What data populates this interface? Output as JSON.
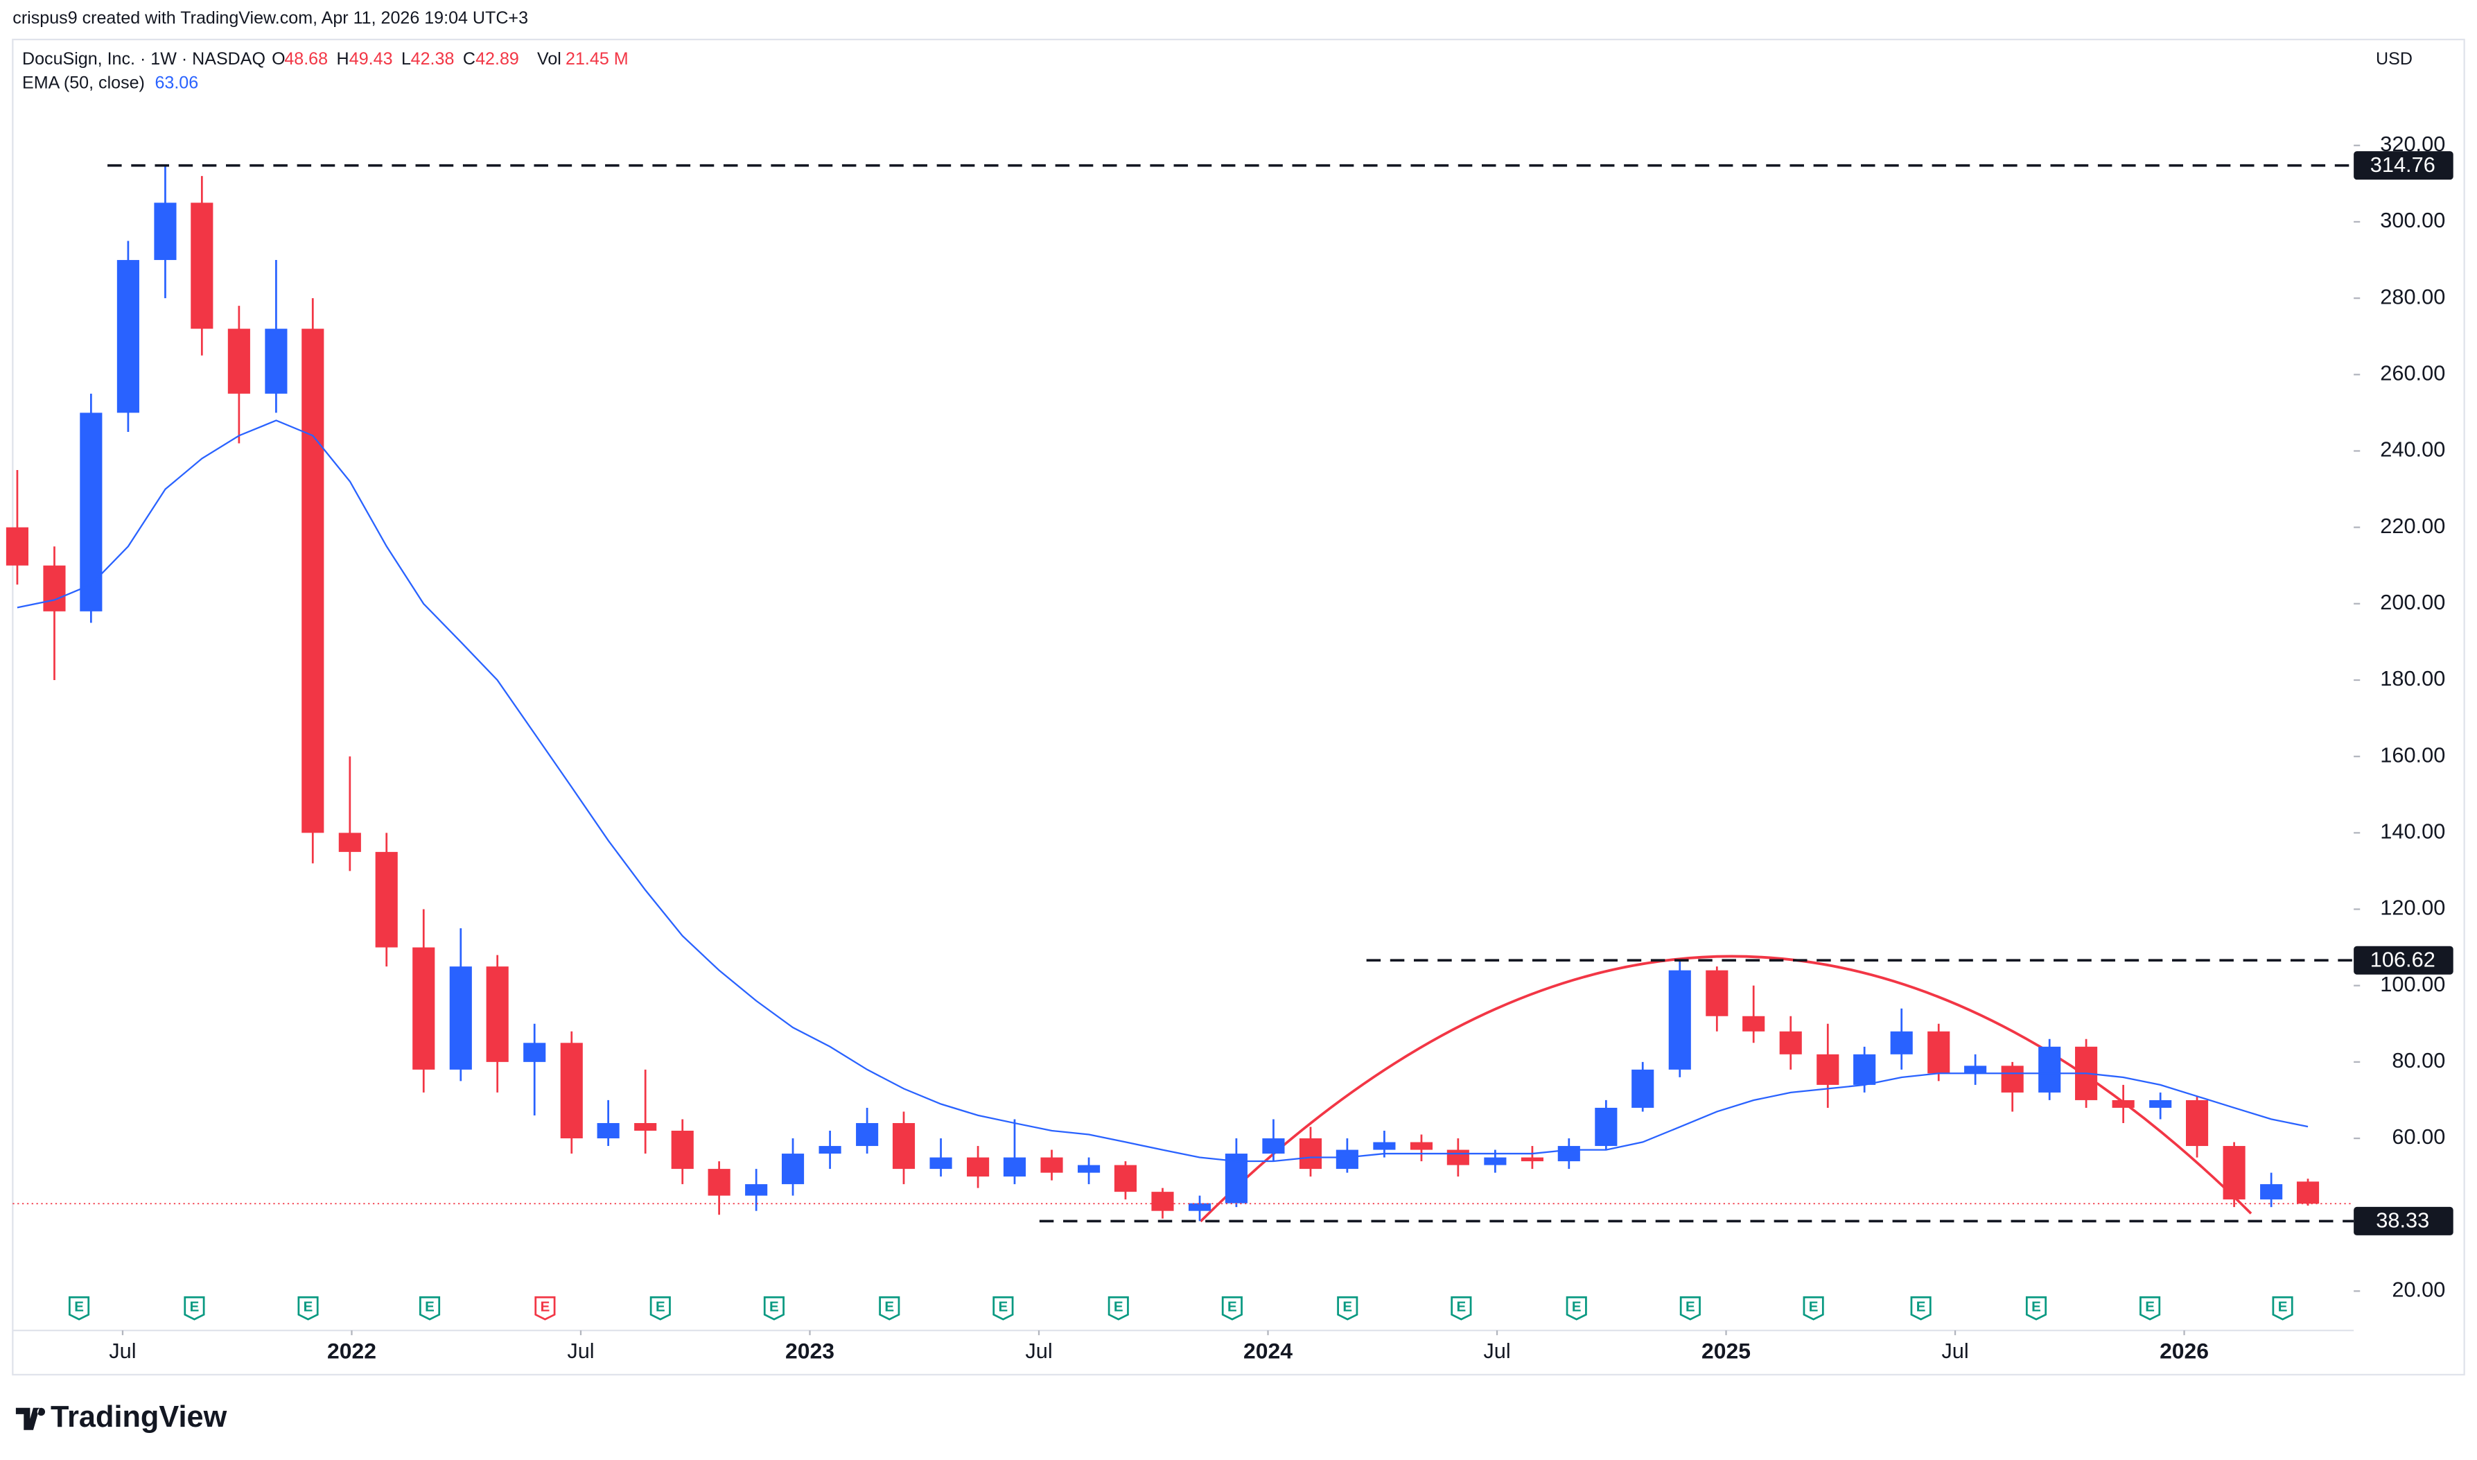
{
  "header": {
    "credit": "crispus9 created with TradingView.com, Apr 11, 2026 19:04 UTC+3",
    "currency": "USD",
    "brand": "TradingView"
  },
  "chart_data": {
    "type": "candlestick",
    "title": "DocuSign, Inc. · 1W · NASDAQ",
    "ohlc_labels": [
      "O",
      "H",
      "L",
      "C"
    ],
    "volume_label": "Vol",
    "volume": "21.45 M",
    "x": [
      2021.27,
      2021.351,
      2021.431,
      2021.512,
      2021.593,
      2021.673,
      2021.754,
      2021.835,
      2021.915,
      2021.996,
      2022.076,
      2022.157,
      2022.238,
      2022.318,
      2022.399,
      2022.48,
      2022.56,
      2022.641,
      2022.722,
      2022.802,
      2022.883,
      2022.963,
      2023.044,
      2023.125,
      2023.205,
      2023.286,
      2023.367,
      2023.447,
      2023.528,
      2023.609,
      2023.689,
      2023.77,
      2023.851,
      2023.931,
      2024.012,
      2024.093,
      2024.173,
      2024.254,
      2024.335,
      2024.415,
      2024.496,
      2024.577,
      2024.657,
      2024.738,
      2024.818,
      2024.899,
      2024.98,
      2025.06,
      2025.141,
      2025.222,
      2025.302,
      2025.383,
      2025.464,
      2025.544,
      2025.625,
      2025.706,
      2025.786,
      2025.867,
      2025.948,
      2026.028,
      2026.109,
      2026.19,
      2026.27
    ],
    "open": [
      220,
      210,
      198,
      250,
      290,
      305,
      272,
      255,
      272,
      140,
      135,
      110,
      78,
      105,
      80,
      85,
      60,
      64,
      62,
      52,
      45,
      48,
      56,
      58,
      64,
      52,
      55,
      50,
      55,
      51,
      53,
      46,
      41,
      43,
      56,
      60,
      52,
      57,
      59,
      57,
      53,
      55,
      54,
      58,
      68,
      78,
      104,
      92,
      88,
      82,
      74,
      82,
      88,
      77,
      79,
      72,
      84,
      70,
      68,
      70,
      58,
      44,
      48.68
    ],
    "high": [
      235,
      215,
      255,
      295,
      314.76,
      312,
      278,
      290,
      280,
      160,
      140,
      120,
      115,
      108,
      90,
      88,
      70,
      78,
      65,
      54,
      52,
      60,
      62,
      68,
      67,
      60,
      58,
      65,
      57,
      55,
      54,
      47,
      45,
      60,
      65,
      63,
      60,
      62,
      61,
      60,
      57,
      58,
      60,
      70,
      80,
      106.62,
      105,
      100,
      92,
      90,
      84,
      94,
      90,
      82,
      80,
      86,
      86,
      74,
      72,
      71,
      59,
      51,
      49.43
    ],
    "low": [
      205,
      180,
      195,
      245,
      280,
      265,
      242,
      250,
      132,
      130,
      105,
      72,
      75,
      72,
      66,
      56,
      58,
      56,
      48,
      40,
      41,
      45,
      52,
      56,
      48,
      50,
      47,
      48,
      49,
      48,
      44,
      39,
      38.33,
      42,
      54,
      50,
      51,
      55,
      54,
      50,
      51,
      52,
      52,
      57,
      67,
      76,
      88,
      85,
      78,
      68,
      72,
      78,
      75,
      74,
      67,
      70,
      68,
      64,
      65,
      55,
      42,
      42,
      42.38
    ],
    "close": [
      210,
      198,
      250,
      290,
      305,
      272,
      255,
      272,
      140,
      135,
      110,
      78,
      105,
      80,
      85,
      60,
      64,
      62,
      52,
      45,
      48,
      56,
      58,
      64,
      52,
      55,
      50,
      55,
      51,
      53,
      46,
      41,
      43,
      56,
      60,
      52,
      57,
      59,
      57,
      53,
      55,
      54,
      58,
      68,
      78,
      104,
      92,
      88,
      82,
      74,
      82,
      88,
      77,
      79,
      72,
      84,
      70,
      68,
      70,
      58,
      44,
      48,
      42.89
    ],
    "up_color": "#2962ff",
    "down_color": "#f23645",
    "ema": {
      "name": "EMA (50, close)",
      "color": "#2962ff",
      "values": [
        199,
        201,
        205,
        215,
        230,
        238,
        244,
        248,
        244,
        232,
        215,
        200,
        190,
        180,
        166,
        152,
        138,
        125,
        113,
        104,
        96,
        89,
        84,
        78,
        73,
        69,
        66,
        64,
        62,
        61,
        59,
        57,
        55,
        54,
        54,
        55,
        55,
        56,
        56,
        56,
        56,
        56,
        57,
        57,
        59,
        63,
        67,
        70,
        72,
        73,
        74,
        76,
        77,
        77,
        77,
        77,
        77,
        76,
        74,
        71,
        68,
        65,
        63.06
      ]
    },
    "levels": [
      314.76,
      106.62,
      38.33
    ],
    "earnings_marker": "E",
    "xlim": [
      2021.26,
      2026.37
    ],
    "ylim": [
      9.7,
      346.5
    ],
    "xticks": [
      {
        "value": 2021.5,
        "label": "Jul"
      },
      2022,
      {
        "value": 2022.5,
        "label": "Jul"
      },
      2023,
      {
        "value": 2023.5,
        "label": "Jul"
      },
      2024,
      {
        "value": 2024.5,
        "label": "Jul"
      },
      2025,
      {
        "value": 2025.5,
        "label": "Jul"
      },
      2026
    ],
    "yticks": [
      {
        "value": 20,
        "label": "20.00"
      },
      {
        "value": 60,
        "label": "60.00"
      },
      {
        "value": 80,
        "label": "80.00"
      },
      {
        "value": 100,
        "label": "100.00"
      },
      {
        "value": 120,
        "label": "120.00"
      },
      {
        "value": 140,
        "label": "140.00"
      },
      {
        "value": 160,
        "label": "160.00"
      },
      {
        "value": 180,
        "label": "180.00"
      },
      {
        "value": 200,
        "label": "200.00"
      },
      {
        "value": 220,
        "label": "220.00"
      },
      {
        "value": 240,
        "label": "240.00"
      },
      {
        "value": 260,
        "label": "260.00"
      },
      {
        "value": 280,
        "label": "280.00"
      },
      {
        "value": 300,
        "label": "300.00"
      },
      {
        "value": 320,
        "label": "320.00"
      }
    ]
  }
}
